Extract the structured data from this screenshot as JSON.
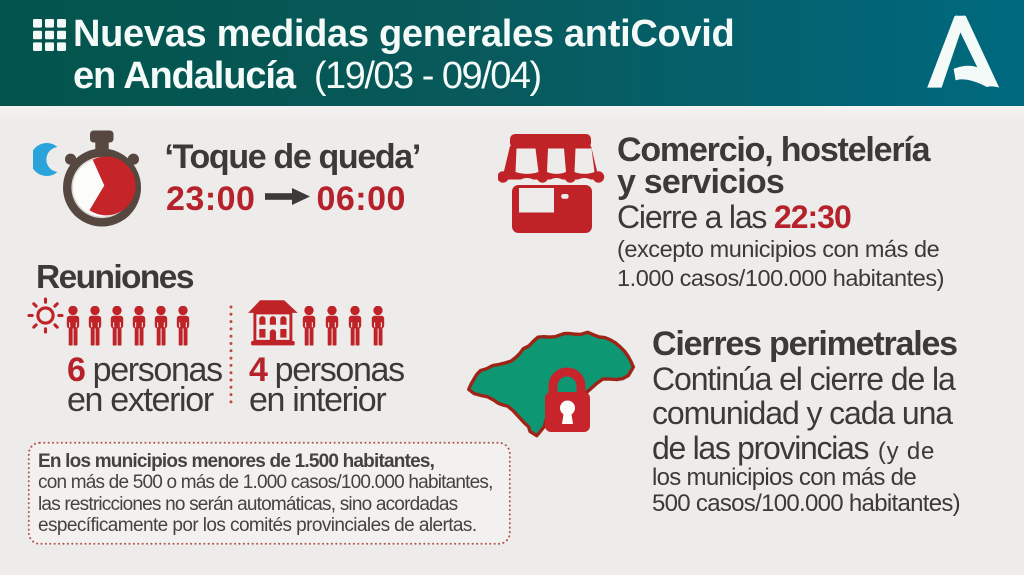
{
  "colors": {
    "header_gradient_left": "#02544c",
    "header_gradient_right": "#00697f",
    "body_bg": "#edecea",
    "dark_text": "#3b3a38",
    "red_text": "#b5222b",
    "red_icon": "#bf2328",
    "padlock_red": "#c7242c",
    "map_green": "#0d9873",
    "map_border": "#9e2418",
    "moon_blue": "#2aa4da",
    "watch_body": "#564740"
  },
  "header": {
    "title_line1": "Nuevas medidas generales antiCovid",
    "title_line2_bold": "en Andalucía",
    "title_line2_dates": "(19/03 - 09/04)",
    "logo_name": "junta-de-andalucia"
  },
  "curfew": {
    "label": "‘Toque de queda’",
    "from": "23:00",
    "to": "06:00"
  },
  "commerce": {
    "title_line1": "Comercio, hostelería",
    "title_line2": "y servicios",
    "closing_prefix": "Cierre a las ",
    "closing_time": "22:30",
    "note_line1": "(excepto municipios con más de",
    "note_line2": "1.000 casos/100.000 habitantes)"
  },
  "meetings": {
    "title": "Reuniones",
    "outdoor_count": "6",
    "outdoor_label": " personas",
    "outdoor_sub": "en exterior",
    "outdoor_people": 6,
    "indoor_count": "4",
    "indoor_label": " personas",
    "indoor_sub": "en interior",
    "indoor_people": 4
  },
  "perimeter": {
    "title": "Cierres perimetrales",
    "line1": "Continúa el cierre de la",
    "line2": "comunidad y cada una",
    "line3_big": "de las provincias ",
    "line3_small": "(y de",
    "line4": "los municipios con más de",
    "line5": "500 casos/100.000 habitantes)"
  },
  "footnote": {
    "line1_bold": "En los municipios menores de 1.500 habitantes,",
    "line2": "con más de 500 o más de 1.000 casos/100.000 habitantes,",
    "line3": "las restricciones no serán automáticas, sino acordadas",
    "line4": "específicamente por los comités provinciales de alertas."
  }
}
